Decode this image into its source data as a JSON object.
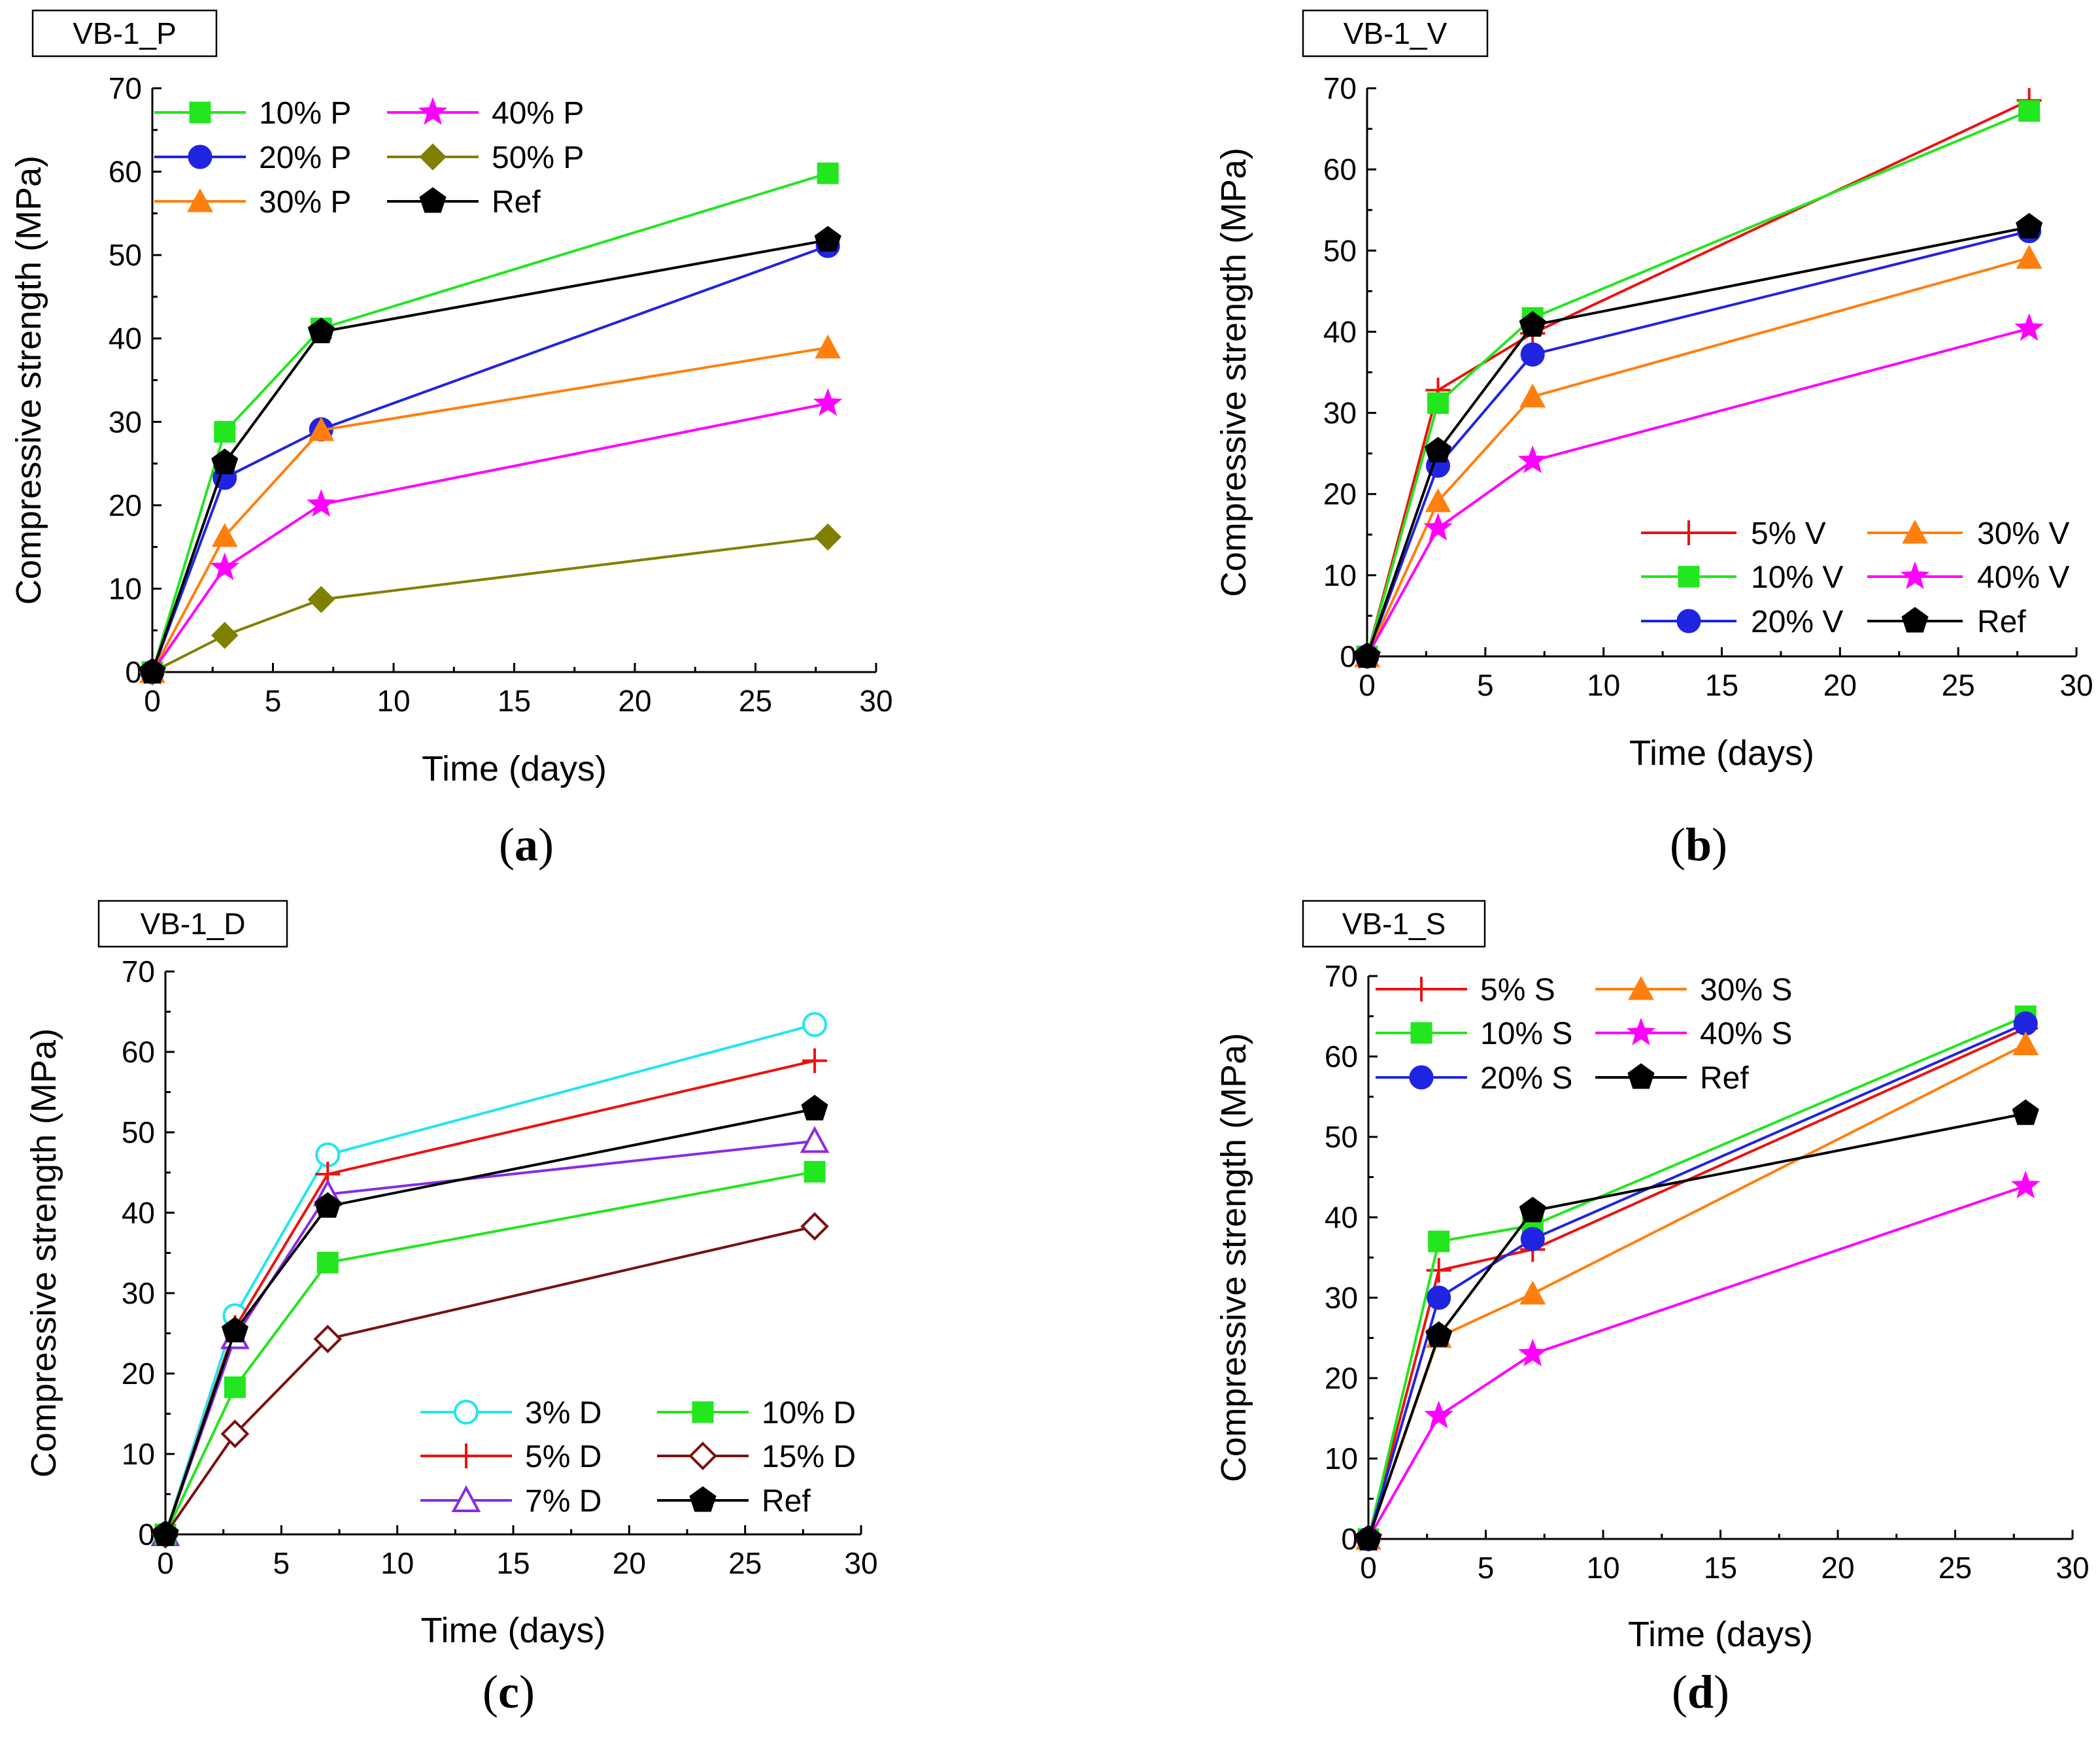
{
  "figure": {
    "captions": [
      "(a)",
      "(b)",
      "(c)",
      "(d)"
    ]
  },
  "chart_data": [
    {
      "type": "line",
      "panel": "a",
      "title": "VB-1_P",
      "xlabel": "Time (days)",
      "ylabel": "Compressive strength (MPa)",
      "xlim": [
        0,
        30
      ],
      "ylim": [
        0,
        70
      ],
      "xticks": [
        0,
        5,
        10,
        15,
        20,
        25,
        30
      ],
      "yticks": [
        0,
        10,
        20,
        30,
        40,
        50,
        60,
        70
      ],
      "grid": false,
      "legend_position": "top-left",
      "legend_columns": 2,
      "x": [
        0,
        3,
        7,
        28
      ],
      "series": [
        {
          "name": "10% P",
          "values": [
            0,
            28.8,
            41.2,
            59.8
          ],
          "color": "#22e61e",
          "marker": "square-filled"
        },
        {
          "name": "20% P",
          "values": [
            0,
            23.3,
            29.1,
            51.1
          ],
          "color": "#1f24e0",
          "marker": "circle-filled"
        },
        {
          "name": "30% P",
          "values": [
            0,
            16.3,
            29.0,
            38.9
          ],
          "color": "#ff7f0e",
          "marker": "triangle-filled"
        },
        {
          "name": "40% P",
          "values": [
            0,
            12.5,
            20.1,
            32.2
          ],
          "color": "#ff00ff",
          "marker": "star-filled"
        },
        {
          "name": "50% P",
          "values": [
            0,
            4.4,
            8.7,
            16.2
          ],
          "color": "#808000",
          "marker": "diamond-filled"
        },
        {
          "name": "Ref",
          "values": [
            0,
            25.1,
            40.8,
            51.8
          ],
          "color": "#000000",
          "marker": "pentagon-filled"
        }
      ]
    },
    {
      "type": "line",
      "panel": "b",
      "title": "VB-1_V",
      "xlabel": "Time (days)",
      "ylabel": "Compressive strength (MPa)",
      "xlim": [
        0,
        30
      ],
      "ylim": [
        0,
        70
      ],
      "xticks": [
        0,
        5,
        10,
        15,
        20,
        25,
        30
      ],
      "yticks": [
        0,
        10,
        20,
        30,
        40,
        50,
        60,
        70
      ],
      "grid": false,
      "legend_position": "bottom-right",
      "legend_columns": 2,
      "x": [
        0,
        3,
        7,
        28
      ],
      "series": [
        {
          "name": "5% V",
          "values": [
            0,
            32.8,
            39.8,
            68.5
          ],
          "color": "#ee1111",
          "marker": "plus"
        },
        {
          "name": "10% V",
          "values": [
            0,
            31.2,
            41.7,
            67.2
          ],
          "color": "#22e61e",
          "marker": "square-filled"
        },
        {
          "name": "20% V",
          "values": [
            0,
            23.5,
            37.2,
            52.4
          ],
          "color": "#1f24e0",
          "marker": "circle-filled"
        },
        {
          "name": "30% V",
          "values": [
            0,
            19.1,
            32.0,
            49.1
          ],
          "color": "#ff7f0e",
          "marker": "triangle-filled"
        },
        {
          "name": "40% V",
          "values": [
            0,
            15.8,
            24.1,
            40.4
          ],
          "color": "#ff00ff",
          "marker": "star-filled"
        },
        {
          "name": "Ref",
          "values": [
            0,
            25.3,
            40.8,
            52.9
          ],
          "color": "#000000",
          "marker": "pentagon-filled"
        }
      ]
    },
    {
      "type": "line",
      "panel": "c",
      "title": "VB-1_D",
      "xlabel": "Time (days)",
      "ylabel": "Compressive strength (MPa)",
      "xlim": [
        0,
        30
      ],
      "ylim": [
        0,
        70
      ],
      "xticks": [
        0,
        5,
        10,
        15,
        20,
        25,
        30
      ],
      "yticks": [
        0,
        10,
        20,
        30,
        40,
        50,
        60,
        70
      ],
      "grid": false,
      "legend_position": "bottom-right",
      "legend_columns": 2,
      "x": [
        0,
        3,
        7,
        28
      ],
      "series": [
        {
          "name": "3% D",
          "values": [
            0,
            27.2,
            47.2,
            63.4
          ],
          "color": "#22e5f0",
          "marker": "circle-open"
        },
        {
          "name": "5% D",
          "values": [
            0,
            25.7,
            44.8,
            58.9
          ],
          "color": "#ee1111",
          "marker": "plus"
        },
        {
          "name": "7% D",
          "values": [
            0,
            24.5,
            42.3,
            48.9
          ],
          "color": "#8a2be2",
          "marker": "triangle-open"
        },
        {
          "name": "10% D",
          "values": [
            0,
            18.3,
            33.8,
            45.1
          ],
          "color": "#22e61e",
          "marker": "square-filled"
        },
        {
          "name": "15% D",
          "values": [
            0,
            12.5,
            24.3,
            38.3
          ],
          "color": "#7a1010",
          "marker": "diamond-open"
        },
        {
          "name": "Ref",
          "values": [
            0,
            25.3,
            40.8,
            52.9
          ],
          "color": "#000000",
          "marker": "pentagon-filled"
        }
      ]
    },
    {
      "type": "line",
      "panel": "d",
      "title": "VB-1_S",
      "xlabel": "Time (days)",
      "ylabel": "Compressive strength (MPa)",
      "xlim": [
        0,
        30
      ],
      "ylim": [
        0,
        70
      ],
      "xticks": [
        0,
        5,
        10,
        15,
        20,
        25,
        30
      ],
      "yticks": [
        0,
        10,
        20,
        30,
        40,
        50,
        60,
        70
      ],
      "grid": false,
      "legend_position": "top-left",
      "legend_columns": 2,
      "x": [
        0,
        3,
        7,
        28
      ],
      "series": [
        {
          "name": "5% S",
          "values": [
            0,
            33.4,
            36.0,
            63.5
          ],
          "color": "#ee1111",
          "marker": "plus"
        },
        {
          "name": "10% S",
          "values": [
            0,
            37.0,
            39.0,
            65.0
          ],
          "color": "#22e61e",
          "marker": "square-filled"
        },
        {
          "name": "20% S",
          "values": [
            0,
            30.0,
            37.3,
            64.1
          ],
          "color": "#1f24e0",
          "marker": "circle-filled"
        },
        {
          "name": "30% S",
          "values": [
            0,
            25.1,
            30.5,
            61.5
          ],
          "color": "#ff7f0e",
          "marker": "triangle-filled"
        },
        {
          "name": "40% S",
          "values": [
            0,
            15.3,
            23.0,
            43.9
          ],
          "color": "#ff00ff",
          "marker": "star-filled"
        },
        {
          "name": "Ref",
          "values": [
            0,
            25.3,
            40.8,
            52.9
          ],
          "color": "#000000",
          "marker": "pentagon-filled"
        }
      ]
    }
  ]
}
